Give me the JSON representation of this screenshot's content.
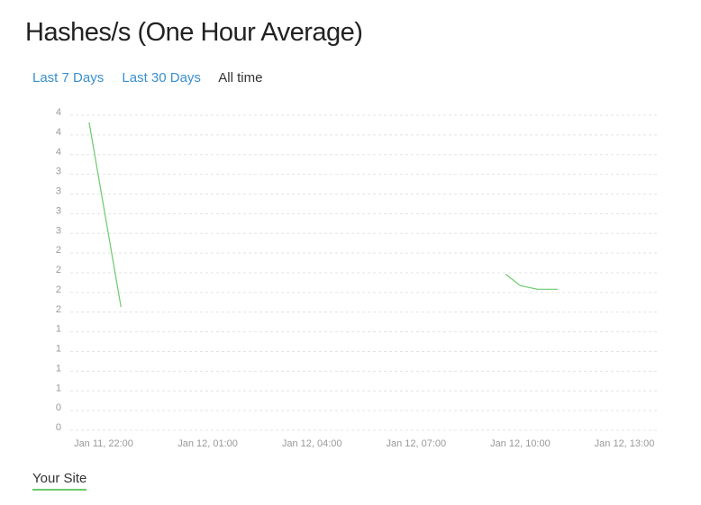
{
  "page": {
    "title": "Hashes/s (One Hour Average)"
  },
  "ranges": [
    {
      "label": "Last 7 Days",
      "active": false
    },
    {
      "label": "Last 30 Days",
      "active": false
    },
    {
      "label": "All time",
      "active": true
    }
  ],
  "legend": {
    "label": "Your Site",
    "color": "#6cc96c"
  },
  "chart_data": {
    "type": "line",
    "title": "",
    "xlabel": "",
    "ylabel": "",
    "grid": true,
    "grid_style": "dashed horizontal",
    "y_tick_labels": [
      "4",
      "4",
      "4",
      "3",
      "3",
      "3",
      "3",
      "2",
      "2",
      "2",
      "2",
      "1",
      "1",
      "1",
      "1",
      "0",
      "0"
    ],
    "ylim": [
      0,
      4.4
    ],
    "x_tick_labels": [
      "Jan 11, 22:00",
      "Jan 12, 01:00",
      "Jan 12, 04:00",
      "Jan 12, 07:00",
      "Jan 12, 10:00",
      "Jan 12, 13:00"
    ],
    "xlim": [
      "Jan 11, 22:00",
      "Jan 12, 13:00"
    ],
    "series": [
      {
        "name": "Your Site",
        "color": "#6cc96c",
        "segments": [
          [
            {
              "x": "Jan 11, 21:35",
              "y": 4.25
            },
            {
              "x": "Jan 11, 22:30",
              "y": 1.67
            }
          ],
          [
            {
              "x": "Jan 12, 09:35",
              "y": 2.13
            },
            {
              "x": "Jan 12, 10:00",
              "y": 1.97
            },
            {
              "x": "Jan 12, 10:30",
              "y": 1.92
            },
            {
              "x": "Jan 12, 11:05",
              "y": 1.92
            }
          ]
        ]
      }
    ]
  }
}
